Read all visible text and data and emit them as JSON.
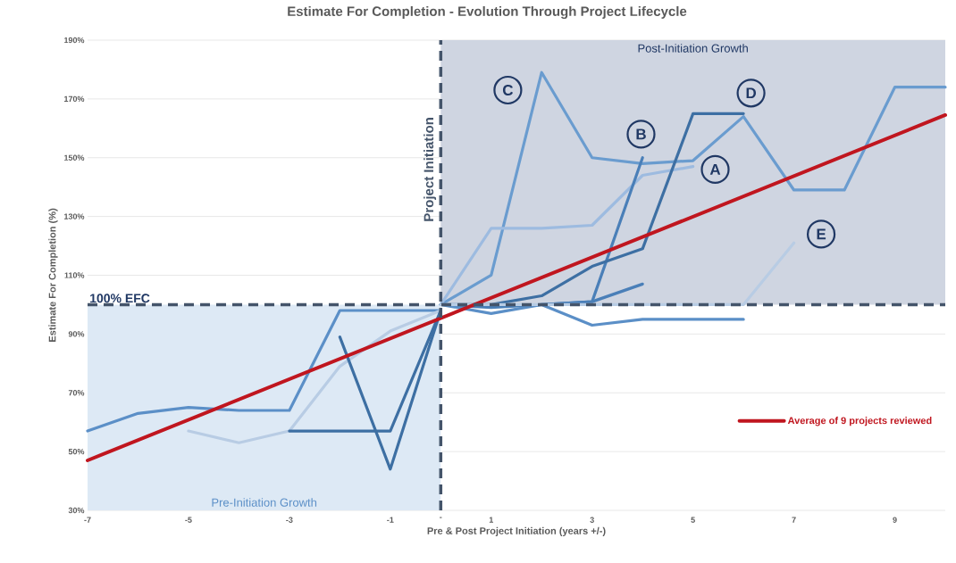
{
  "chart_data": {
    "type": "line",
    "title": "Estimate For Completion - Evolution Through Project Lifecycle",
    "xlabel": "Pre & Post Project Initiation (years +/-)",
    "ylabel": "Estimate For Completion (%)",
    "xlim": [
      -7,
      10
    ],
    "ylim": [
      30,
      190
    ],
    "xticks": [
      -7,
      -5,
      -3,
      -1,
      {
        "value": 0,
        "label": "-"
      },
      1,
      3,
      5,
      7,
      9
    ],
    "yticks": [
      {
        "value": 30,
        "label": "30%"
      },
      {
        "value": 50,
        "label": "50%"
      },
      {
        "value": 70,
        "label": "70%"
      },
      {
        "value": 90,
        "label": "90%"
      },
      {
        "value": 110,
        "label": "110%"
      },
      {
        "value": 130,
        "label": "130%"
      },
      {
        "value": 150,
        "label": "150%"
      },
      {
        "value": 170,
        "label": "170%"
      },
      {
        "value": 190,
        "label": "190%"
      }
    ],
    "grid": "y",
    "legend": "right",
    "line_style": "solid",
    "marker": "none",
    "series": [
      {
        "color": "#5b8fc7",
        "x": [
          -7,
          -6,
          -5,
          -4,
          -3,
          -2,
          -1,
          0
        ],
        "values": [
          57,
          63,
          65,
          64,
          64,
          98,
          98,
          98
        ]
      },
      {
        "color": "#b8cce4",
        "x": [
          -5,
          -4,
          -3,
          -2,
          -1,
          0
        ],
        "values": [
          57,
          53,
          57,
          79,
          91,
          98
        ]
      },
      {
        "color": "#3d6fa3",
        "x": [
          -3,
          -2,
          -1,
          0
        ],
        "values": [
          57,
          57,
          57,
          98
        ]
      },
      {
        "color": "#3d6fa3",
        "x": [
          -2,
          -1,
          0
        ],
        "values": [
          89,
          44,
          98
        ]
      },
      {
        "color": "#6a9ccf",
        "x": [
          0,
          1,
          2,
          3,
          4,
          5,
          6,
          7,
          8,
          9,
          10
        ],
        "values": [
          100,
          110,
          179,
          150,
          148,
          149,
          164,
          139,
          139,
          174,
          174
        ]
      },
      {
        "color": "#9dbbe0",
        "x": [
          0,
          1,
          2,
          3,
          4,
          5
        ],
        "values": [
          100,
          126,
          126,
          127,
          144,
          147
        ]
      },
      {
        "color": "#4a7fb8",
        "x": [
          0,
          1,
          2,
          3,
          4
        ],
        "values": [
          100,
          99,
          100,
          101,
          150
        ]
      },
      {
        "color": "#4a7fb8",
        "x": [
          2,
          3,
          4
        ],
        "values": [
          100,
          101,
          107
        ]
      },
      {
        "color": "#3d6fa3",
        "x": [
          0,
          1,
          2,
          3,
          4,
          5,
          6
        ],
        "values": [
          100,
          100,
          103,
          113,
          119,
          165,
          165
        ]
      },
      {
        "color": "#5b8fc7",
        "x": [
          0,
          1,
          2,
          3,
          4,
          5,
          6
        ],
        "values": [
          100,
          97,
          100,
          93,
          95,
          95,
          95
        ]
      },
      {
        "color": "#b8cce4",
        "x": [
          0,
          1,
          2,
          3,
          4,
          5,
          6,
          7
        ],
        "values": [
          100,
          100,
          100,
          100,
          100,
          100,
          100,
          121
        ]
      },
      {
        "name": "Average of 9 projects reviewed",
        "color": "#c0161f",
        "x": [
          -7,
          10
        ],
        "values": [
          47,
          164.5
        ]
      }
    ],
    "ref_lines": [
      {
        "axis": "y",
        "value": 100,
        "label": "100% EFC",
        "color": "#44546a",
        "line_style": "dashed"
      },
      {
        "axis": "x",
        "value": 0,
        "label": "Project Initiation",
        "color": "#44546a",
        "line_style": "dashed"
      }
    ],
    "bands": [
      {
        "axis": "x",
        "from": -7,
        "to": 0,
        "label": "Pre-Initiation Growth",
        "color": "#dde9f5"
      },
      {
        "axis": "x",
        "from": 0,
        "to": 10,
        "label": "Post-Initiation Growth",
        "color": "#cfd5e1"
      }
    ],
    "annotations": [
      {
        "text": "C",
        "x": 1.33,
        "y": 173
      },
      {
        "text": "B",
        "x": 3.97,
        "y": 158
      },
      {
        "text": "D",
        "x": 6.15,
        "y": 172
      },
      {
        "text": "A",
        "x": 5.44,
        "y": 146
      },
      {
        "text": "E",
        "x": 7.54,
        "y": 124
      }
    ]
  }
}
